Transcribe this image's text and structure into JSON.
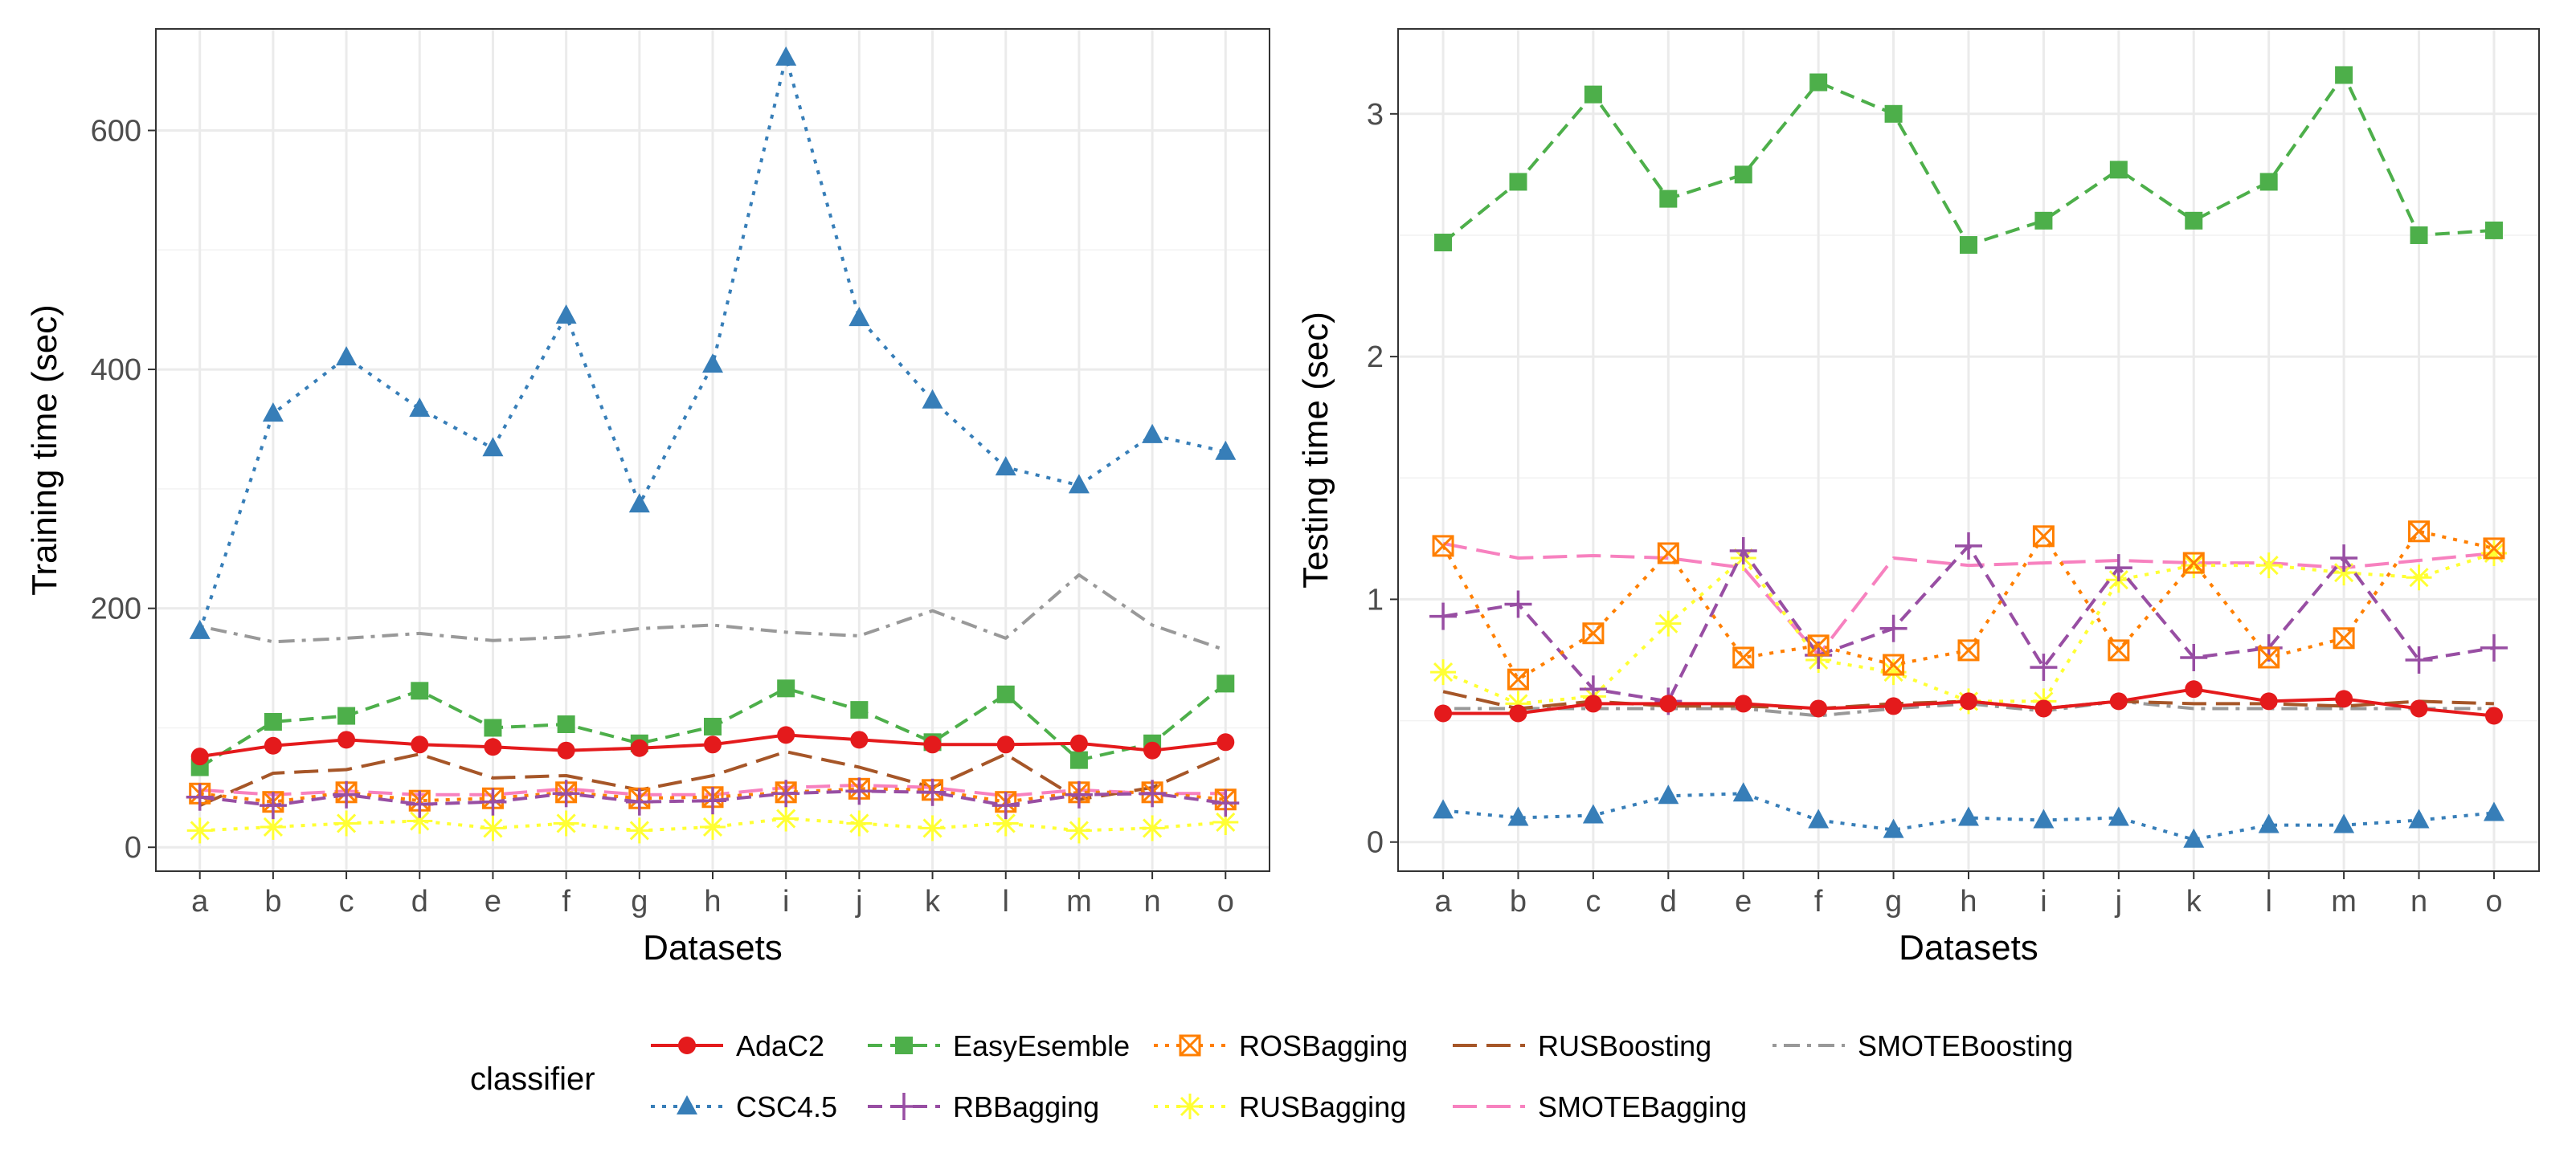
{
  "legend": {
    "title": "classifier",
    "entries": [
      {
        "name": "AdaC2",
        "color": "#e41a1c",
        "line": "solid",
        "marker": "circle"
      },
      {
        "name": "EasyEsemble",
        "color": "#4daf4a",
        "line": "dashed",
        "marker": "square"
      },
      {
        "name": "ROSBagging",
        "color": "#ff7f00",
        "line": "dotted",
        "marker": "square-x"
      },
      {
        "name": "RUSBoosting",
        "color": "#a65628",
        "line": "longdash",
        "marker": "none"
      },
      {
        "name": "SMOTEBoosting",
        "color": "#999999",
        "line": "dotdash",
        "marker": "none"
      },
      {
        "name": "CSC4.5",
        "color": "#377eb8",
        "line": "dotted",
        "marker": "triangle"
      },
      {
        "name": "RBBagging",
        "color": "#984ea3",
        "line": "dashed",
        "marker": "plus"
      },
      {
        "name": "RUSBagging",
        "color": "#ffff33",
        "line": "dotted",
        "marker": "star"
      },
      {
        "name": "SMOTEBagging",
        "color": "#f781bf",
        "line": "longdash",
        "marker": "none"
      }
    ]
  },
  "chart_data": [
    {
      "type": "line",
      "title": "",
      "xlabel": "Datasets",
      "ylabel": "Training time (sec)",
      "categories": [
        "a",
        "b",
        "c",
        "d",
        "e",
        "f",
        "g",
        "h",
        "i",
        "j",
        "k",
        "l",
        "m",
        "n",
        "o"
      ],
      "ylim": [
        -20,
        685
      ],
      "yticks": [
        0,
        200,
        400,
        600
      ],
      "grid": true,
      "series": [
        {
          "name": "SMOTEBoosting",
          "values": [
            185,
            172,
            175,
            179,
            173,
            176,
            183,
            186,
            180,
            177,
            198,
            175,
            228,
            186,
            165
          ]
        },
        {
          "name": "RUSBoosting",
          "values": [
            35,
            62,
            65,
            78,
            58,
            60,
            48,
            60,
            80,
            67,
            50,
            78,
            40,
            50,
            77
          ]
        },
        {
          "name": "SMOTEBagging",
          "values": [
            48,
            44,
            47,
            44,
            44,
            49,
            44,
            44,
            50,
            52,
            50,
            43,
            48,
            45,
            45
          ]
        },
        {
          "name": "RUSBagging",
          "values": [
            14,
            17,
            20,
            22,
            16,
            20,
            14,
            17,
            24,
            20,
            16,
            20,
            14,
            16,
            21
          ]
        },
        {
          "name": "ROSBagging",
          "values": [
            45,
            38,
            46,
            39,
            41,
            46,
            41,
            42,
            46,
            49,
            48,
            38,
            46,
            46,
            40
          ]
        },
        {
          "name": "RBBagging",
          "values": [
            42,
            35,
            44,
            36,
            38,
            45,
            38,
            39,
            45,
            47,
            46,
            35,
            44,
            45,
            37
          ]
        },
        {
          "name": "EasyEsemble",
          "values": [
            67,
            105,
            110,
            131,
            100,
            103,
            87,
            101,
            133,
            115,
            88,
            128,
            73,
            87,
            137
          ]
        },
        {
          "name": "AdaC2",
          "values": [
            76,
            85,
            90,
            86,
            84,
            81,
            83,
            86,
            94,
            90,
            86,
            86,
            87,
            81,
            88
          ]
        },
        {
          "name": "CSC4.5",
          "values": [
            181,
            363,
            410,
            367,
            334,
            445,
            287,
            404,
            661,
            443,
            374,
            318,
            303,
            345,
            331
          ]
        }
      ]
    },
    {
      "type": "line",
      "title": "",
      "xlabel": "Datasets",
      "ylabel": "Testing time (sec)",
      "categories": [
        "a",
        "b",
        "c",
        "d",
        "e",
        "f",
        "g",
        "h",
        "i",
        "j",
        "k",
        "l",
        "m",
        "n",
        "o"
      ],
      "ylim": [
        -0.12,
        3.35
      ],
      "yticks": [
        0,
        1,
        2,
        3
      ],
      "grid": true,
      "series": [
        {
          "name": "SMOTEBoosting",
          "values": [
            0.55,
            0.55,
            0.55,
            0.55,
            0.55,
            0.52,
            0.55,
            0.57,
            0.54,
            0.58,
            0.55,
            0.55,
            0.55,
            0.55,
            0.55
          ]
        },
        {
          "name": "RUSBoosting",
          "values": [
            0.62,
            0.55,
            0.58,
            0.56,
            0.56,
            0.55,
            0.57,
            0.58,
            0.55,
            0.58,
            0.57,
            0.57,
            0.56,
            0.58,
            0.57
          ]
        },
        {
          "name": "SMOTEBagging",
          "values": [
            1.23,
            1.17,
            1.18,
            1.17,
            1.13,
            0.77,
            1.17,
            1.14,
            1.15,
            1.16,
            1.15,
            1.15,
            1.13,
            1.16,
            1.19
          ]
        },
        {
          "name": "RUSBagging",
          "values": [
            0.7,
            0.57,
            0.6,
            0.9,
            1.17,
            0.75,
            0.7,
            0.58,
            0.58,
            1.08,
            1.14,
            1.14,
            1.11,
            1.09,
            1.19
          ]
        },
        {
          "name": "RBBagging",
          "values": [
            0.93,
            0.98,
            0.63,
            0.58,
            1.2,
            0.77,
            0.88,
            1.22,
            0.72,
            1.13,
            0.76,
            0.8,
            1.17,
            0.75,
            0.8
          ]
        },
        {
          "name": "ROSBagging",
          "values": [
            1.22,
            0.67,
            0.86,
            1.19,
            0.76,
            0.81,
            0.73,
            0.79,
            1.26,
            0.79,
            1.15,
            0.76,
            0.84,
            1.28,
            1.21
          ]
        },
        {
          "name": "EasyEsemble",
          "values": [
            2.47,
            2.72,
            3.08,
            2.65,
            2.75,
            3.13,
            3.0,
            2.46,
            2.56,
            2.77,
            2.56,
            2.72,
            3.16,
            2.5,
            2.52
          ]
        },
        {
          "name": "AdaC2",
          "values": [
            0.53,
            0.53,
            0.57,
            0.57,
            0.57,
            0.55,
            0.56,
            0.58,
            0.55,
            0.58,
            0.63,
            0.58,
            0.59,
            0.55,
            0.52
          ]
        },
        {
          "name": "CSC4.5",
          "values": [
            0.13,
            0.1,
            0.11,
            0.19,
            0.2,
            0.09,
            0.05,
            0.1,
            0.09,
            0.1,
            0.01,
            0.07,
            0.07,
            0.09,
            0.12
          ]
        }
      ]
    }
  ]
}
